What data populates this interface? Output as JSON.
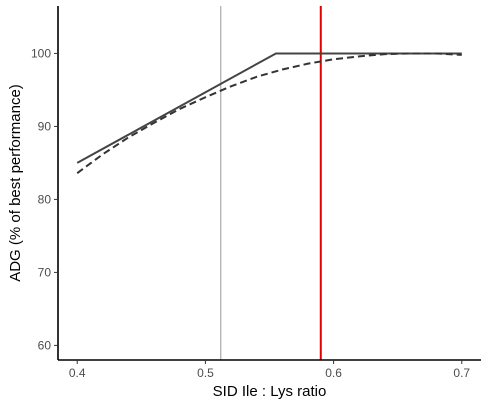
{
  "chart_data": {
    "type": "line",
    "title": "",
    "xlabel": "SID Ile : Lys ratio",
    "ylabel": "ADG (% of best performance)",
    "xlim": [
      0.385,
      0.715
    ],
    "ylim": [
      58.0,
      106.5
    ],
    "x_ticks": [
      0.4,
      0.5,
      0.6,
      0.7
    ],
    "x_tick_labels": [
      "0.4",
      "0.5",
      "0.6",
      "0.7"
    ],
    "y_ticks": [
      60,
      70,
      80,
      90,
      100
    ],
    "y_tick_labels": [
      "60",
      "70",
      "80",
      "90",
      "100"
    ],
    "grid": false,
    "legend": "none",
    "series": [
      {
        "style": "solid",
        "color": "#444444",
        "x": [
          0.4,
          0.555,
          0.7
        ],
        "y": [
          85.0,
          100.0,
          100.0
        ]
      },
      {
        "style": "dashed",
        "color": "#333333",
        "x": [
          0.4,
          0.42,
          0.44,
          0.46,
          0.48,
          0.5,
          0.52,
          0.54,
          0.56,
          0.58,
          0.6,
          0.62,
          0.64,
          0.66,
          0.68,
          0.7
        ],
        "y": [
          83.6,
          86.2,
          88.5,
          90.5,
          92.4,
          94.0,
          95.5,
          96.8,
          97.8,
          98.6,
          99.2,
          99.6,
          99.9,
          100.0,
          100.0,
          99.8
        ]
      }
    ],
    "reference_lines": [
      {
        "x": 0.512,
        "color": "#999999",
        "width": 1
      },
      {
        "x": 0.59,
        "color": "#e00000",
        "width": 2
      }
    ]
  }
}
